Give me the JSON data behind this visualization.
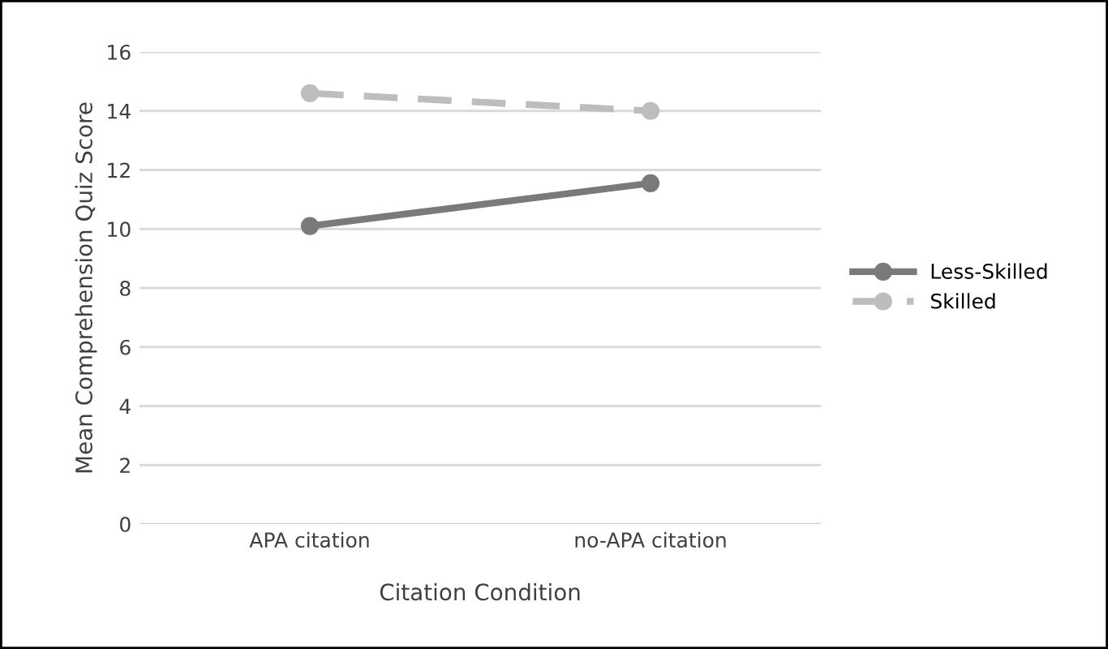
{
  "chart_data": {
    "type": "line",
    "xlabel": "Citation Condition",
    "ylabel": "Mean Comprehension Quiz Score",
    "categories": [
      "APA citation",
      "no-APA citation"
    ],
    "series": [
      {
        "name": "Less-Skilled",
        "color": "#7a7a7a",
        "values": [
          10.1,
          11.55
        ],
        "line_style": "solid",
        "marker": "circle"
      },
      {
        "name": "Skilled",
        "color": "#bdbdbd",
        "values": [
          14.6,
          14.0
        ],
        "line_style": "dashed",
        "marker": "circle"
      }
    ],
    "ylim": [
      0,
      16
    ],
    "yticks": [
      0,
      2,
      4,
      6,
      8,
      10,
      12,
      14,
      16
    ],
    "grid": "y",
    "legend": "right"
  }
}
